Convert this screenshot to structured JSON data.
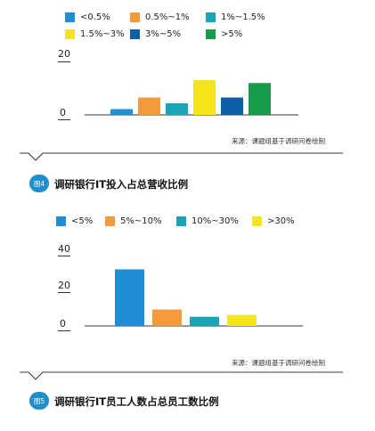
{
  "chart_data": [
    {
      "type": "bar",
      "categories": [
        "<0.5%",
        "0.5%~1%",
        "1%~1.5%",
        "1.5%~3%",
        "3%~5%",
        ">5%"
      ],
      "values": [
        2,
        6,
        4,
        12,
        6,
        11
      ],
      "colors": [
        "#1f8ed6",
        "#f39a3b",
        "#18a6b6",
        "#f6e41a",
        "#0f5fa8",
        "#169c4a"
      ],
      "yticks": [
        0,
        20
      ],
      "ylim": [
        0,
        20
      ],
      "source": "来源：课题组基于调研问卷绘制",
      "figure_label": "图4",
      "caption": "调研银行IT投入占总营收比例"
    },
    {
      "type": "bar",
      "categories": [
        "<5%",
        "5%~10%",
        "10%~30%",
        ">30%"
      ],
      "values": [
        31,
        9,
        5,
        6
      ],
      "colors": [
        "#1f8ed6",
        "#f39a3b",
        "#18a6b6",
        "#f6e41a"
      ],
      "yticks": [
        0,
        20,
        40
      ],
      "ylim": [
        0,
        40
      ],
      "source": "来源：课题组基于调研问卷绘制",
      "figure_label": "图5",
      "caption": "调研银行IT员工人数占总员工数比例"
    }
  ]
}
